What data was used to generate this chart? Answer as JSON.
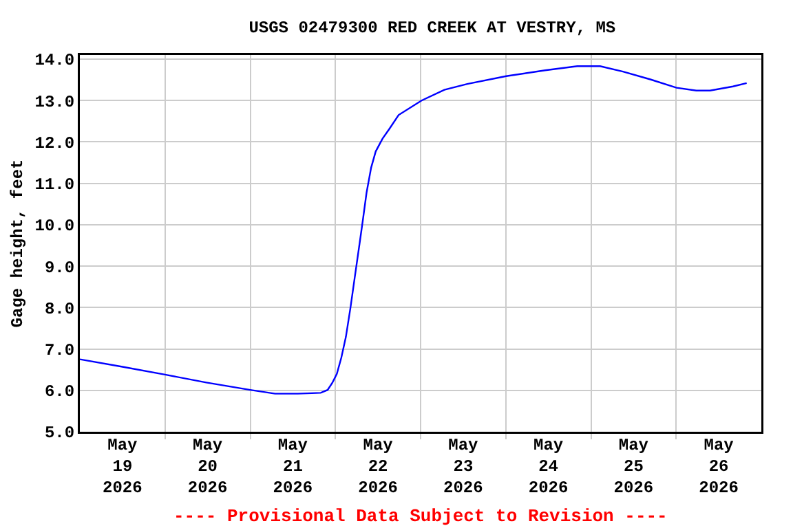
{
  "chart_data": {
    "type": "line",
    "title": "USGS 02479300 RED CREEK AT VESTRY, MS",
    "ylabel": "Gage height, feet",
    "annotations": [
      "---- Provisional Data Subject to Revision ----"
    ],
    "x": [
      "2026-05-19T00:00",
      "2026-05-19T12:00",
      "2026-05-20T00:00",
      "2026-05-20T11:36",
      "2026-05-21T00:00",
      "2026-05-21T07:00",
      "2026-05-21T13:25",
      "2026-05-21T19:52",
      "2026-05-21T21:48",
      "2026-05-21T23:07",
      "2026-05-22T00:24",
      "2026-05-22T01:40",
      "2026-05-22T02:57",
      "2026-05-22T04:15",
      "2026-05-22T05:32",
      "2026-05-22T06:49",
      "2026-05-22T07:44",
      "2026-05-22T08:46",
      "2026-05-22T10:04",
      "2026-05-22T11:21",
      "2026-05-22T13:17",
      "2026-05-22T15:14",
      "2026-05-22T17:48",
      "2026-05-23T00:16",
      "2026-05-23T06:42",
      "2026-05-23T13:09",
      "2026-05-24T00:07",
      "2026-05-24T11:06",
      "2026-05-24T20:08",
      "2026-05-25T02:35",
      "2026-05-25T09:01",
      "2026-05-25T16:44",
      "2026-05-26T00:06",
      "2026-05-26T05:41",
      "2026-05-26T09:33",
      "2026-05-26T16:00",
      "2026-05-26T19:52"
    ],
    "series": [
      {
        "color": "#0000ff",
        "values": [
          6.75,
          6.57,
          6.38,
          6.19,
          6.01,
          5.92,
          5.92,
          5.94,
          6.01,
          6.18,
          6.4,
          6.79,
          7.29,
          8.0,
          8.78,
          9.55,
          10.11,
          10.77,
          11.38,
          11.77,
          12.08,
          12.32,
          12.65,
          13.0,
          13.26,
          13.4,
          13.59,
          13.73,
          13.83,
          13.83,
          13.7,
          13.51,
          13.31,
          13.24,
          13.24,
          13.34,
          13.42
        ]
      }
    ],
    "xlim": [
      "2026-05-19T00:00",
      "2026-05-27T00:00"
    ],
    "xticks": [
      {
        "value": "2026-05-20T00:00",
        "label": null
      },
      {
        "value": "2026-05-21T00:00",
        "label": null
      },
      {
        "value": "2026-05-22T00:00",
        "label": null
      },
      {
        "value": "2026-05-23T00:00",
        "label": null
      },
      {
        "value": "2026-05-24T00:00",
        "label": null
      },
      {
        "value": "2026-05-25T00:00",
        "label": null
      },
      {
        "value": "2026-05-26T00:00",
        "label": null
      },
      {
        "value": "2026-05-19T12:00",
        "label": "May\n19\n2026"
      },
      {
        "value": "2026-05-20T12:00",
        "label": "May\n20\n2026"
      },
      {
        "value": "2026-05-21T12:00",
        "label": "May\n21\n2026"
      },
      {
        "value": "2026-05-22T12:00",
        "label": "May\n22\n2026"
      },
      {
        "value": "2026-05-23T12:00",
        "label": "May\n23\n2026"
      },
      {
        "value": "2026-05-24T12:00",
        "label": "May\n24\n2026"
      },
      {
        "value": "2026-05-25T12:00",
        "label": "May\n25\n2026"
      },
      {
        "value": "2026-05-26T12:00",
        "label": "May\n26\n2026"
      }
    ],
    "ylim": [
      5,
      14.1
    ],
    "yticks": [
      {
        "value": 5,
        "label": "5.0"
      },
      {
        "value": 6,
        "label": "6.0"
      },
      {
        "value": 7,
        "label": "7.0"
      },
      {
        "value": 8,
        "label": "8.0"
      },
      {
        "value": 9,
        "label": "9.0"
      },
      {
        "value": 10,
        "label": "10.0"
      },
      {
        "value": 11,
        "label": "11.0"
      },
      {
        "value": 12,
        "label": "12.0"
      },
      {
        "value": 13,
        "label": "13.0"
      },
      {
        "value": 14,
        "label": "14.0"
      }
    ],
    "grid": true,
    "line_style": "solid",
    "marker": "none"
  }
}
